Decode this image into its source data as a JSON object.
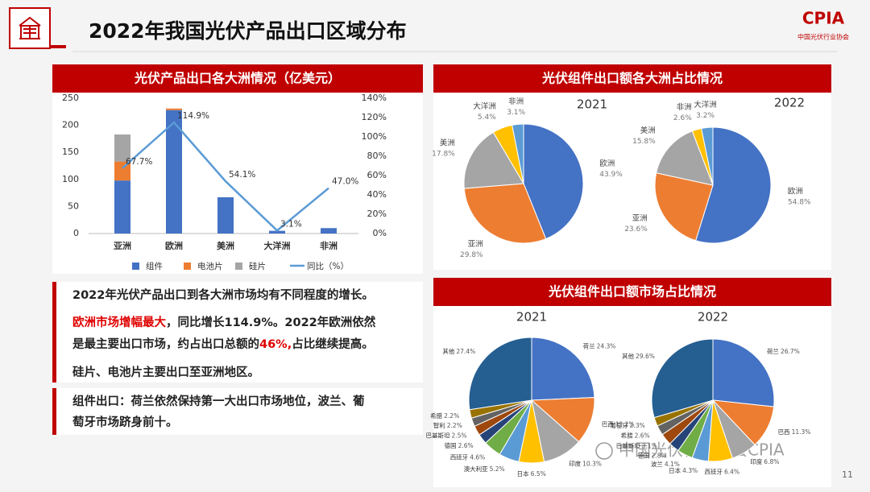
{
  "header": {
    "title": "2022年我国光伏产品出口区域分布",
    "logo": "CPIA",
    "logo_sub": "中国光伏行业协会"
  },
  "panel_titles": [
    "光伏组件出口额各大洲占比情况",
    "光伏组件出口额市场占比情况"
  ],
  "chart_data": [
    {
      "type": "bar",
      "title": "光伏产品出口各大洲情况（亿美元）",
      "stacked": true,
      "categories": [
        "亚洲",
        "欧洲",
        "美洲",
        "大洋洲",
        "非洲"
      ],
      "series": [
        {
          "name": "组件",
          "color": "#4472c4",
          "values": [
            98,
            228,
            67,
            5,
            10
          ]
        },
        {
          "name": "电池片",
          "color": "#ed7d31",
          "values": [
            35,
            3,
            0,
            0,
            0
          ]
        },
        {
          "name": "硅片",
          "color": "#a5a5a5",
          "values": [
            50,
            0,
            0,
            0,
            0
          ]
        },
        {
          "name": "同比（%）",
          "color": "#5b9bd5",
          "kind": "line",
          "axis": "y2",
          "values": [
            67.7,
            114.9,
            54.1,
            3.1,
            47.0
          ],
          "value_labels": [
            "67.7%",
            "114.9%",
            "54.1%",
            "3.1%",
            "47.0%"
          ]
        }
      ],
      "ylim": [
        0,
        250
      ],
      "yticks": [
        0,
        50,
        100,
        150,
        200,
        250
      ],
      "y2lim": [
        0,
        140
      ],
      "y2ticks": [
        {
          "value": 0,
          "label": "0%"
        },
        {
          "value": 20,
          "label": "20%"
        },
        {
          "value": 40,
          "label": "40%"
        },
        {
          "value": 60,
          "label": "60%"
        },
        {
          "value": 80,
          "label": "80%"
        },
        {
          "value": 100,
          "label": "100%"
        },
        {
          "value": 120,
          "label": "120%"
        },
        {
          "value": 140,
          "label": "140%"
        }
      ]
    },
    {
      "type": "pie",
      "title": "2021",
      "categories": [
        "欧洲",
        "亚洲",
        "美洲",
        "大洋洲",
        "非洲"
      ],
      "values": [
        43.9,
        29.8,
        17.8,
        5.4,
        3.1
      ],
      "value_labels": [
        "43.9%",
        "29.8%",
        "17.8%",
        "5.4%",
        "3.1%"
      ],
      "colors": [
        "#4472c4",
        "#ed7d31",
        "#a5a5a5",
        "#ffc000",
        "#5b9bd5"
      ]
    },
    {
      "type": "pie",
      "title": "2022",
      "categories": [
        "欧洲",
        "亚洲",
        "美洲",
        "非洲",
        "大洋洲"
      ],
      "values": [
        54.8,
        23.6,
        15.8,
        2.6,
        3.2
      ],
      "value_labels": [
        "54.8%",
        "23.6%",
        "15.8%",
        "2.6%",
        "3.2%"
      ],
      "colors": [
        "#4472c4",
        "#ed7d31",
        "#a5a5a5",
        "#ffc000",
        "#5b9bd5"
      ]
    },
    {
      "type": "pie",
      "title": "2021",
      "categories": [
        "荷兰",
        "巴西",
        "印度",
        "日本",
        "澳大利亚",
        "西班牙",
        "德国",
        "巴基斯坦",
        "智利",
        "希腊",
        "其他"
      ],
      "values": [
        24.3,
        12.2,
        10.3,
        6.5,
        5.2,
        4.6,
        2.6,
        2.5,
        2.2,
        2.2,
        27.4
      ],
      "value_labels": [
        "24.3%",
        "12.2%",
        "10.3%",
        "6.5%",
        "5.2%",
        "4.6%",
        "2.6%",
        "2.5%",
        "2.2%",
        "2.2%",
        "27.4%"
      ],
      "colors": [
        "#4472c4",
        "#ed7d31",
        "#a5a5a5",
        "#ffc000",
        "#5b9bd5",
        "#70ad47",
        "#264478",
        "#9e480e",
        "#636363",
        "#997300",
        "#255e91"
      ]
    },
    {
      "type": "pie",
      "title": "2022",
      "categories": [
        "荷兰",
        "巴西",
        "印度",
        "西班牙",
        "日本",
        "波兰",
        "德国",
        "巴基斯坦",
        "希腊",
        "葡萄牙",
        "其他"
      ],
      "values": [
        26.7,
        11.3,
        6.8,
        6.4,
        4.3,
        4.1,
        2.8,
        3.1,
        2.6,
        2.3,
        29.6
      ],
      "value_labels": [
        "26.7%",
        "11.3%",
        "6.8%",
        "6.4%",
        "4.3%",
        "4.1%",
        "2.8%",
        "3.1%",
        "2.6%",
        "2.3%",
        "29.6%"
      ],
      "colors": [
        "#4472c4",
        "#ed7d31",
        "#a5a5a5",
        "#ffc000",
        "#5b9bd5",
        "#70ad47",
        "#264478",
        "#9e480e",
        "#636363",
        "#997300",
        "#255e91"
      ]
    }
  ],
  "notes": [
    {
      "lines": [
        [
          {
            "text": "2022年光伏产品出口到各大洲市场均有不同程度的增长。"
          }
        ]
      ]
    },
    {
      "lines": [
        [
          {
            "text": "欧洲市场增幅最大",
            "color": "#e00000"
          },
          {
            "text": "，同比增长114.9%。2022年欧洲依然"
          }
        ],
        [
          {
            "text": "是最主要出口市场，约占出口总额的"
          },
          {
            "text": "46%,",
            "color": "#e00000"
          },
          {
            "text": "占比继续提高。"
          }
        ]
      ]
    },
    {
      "lines": [
        [
          {
            "text": "硅片、电池片主要出口至亚洲地区。"
          }
        ]
      ]
    },
    {
      "lines": [
        [
          {
            "text": "组件出口：荷兰依然保持第一大出口市场地位，波兰、葡"
          }
        ],
        [
          {
            "text": "萄牙市场跻身前十。"
          }
        ]
      ]
    }
  ],
  "watermark": "中国光伏行业协会CPIA",
  "page_number": "11"
}
